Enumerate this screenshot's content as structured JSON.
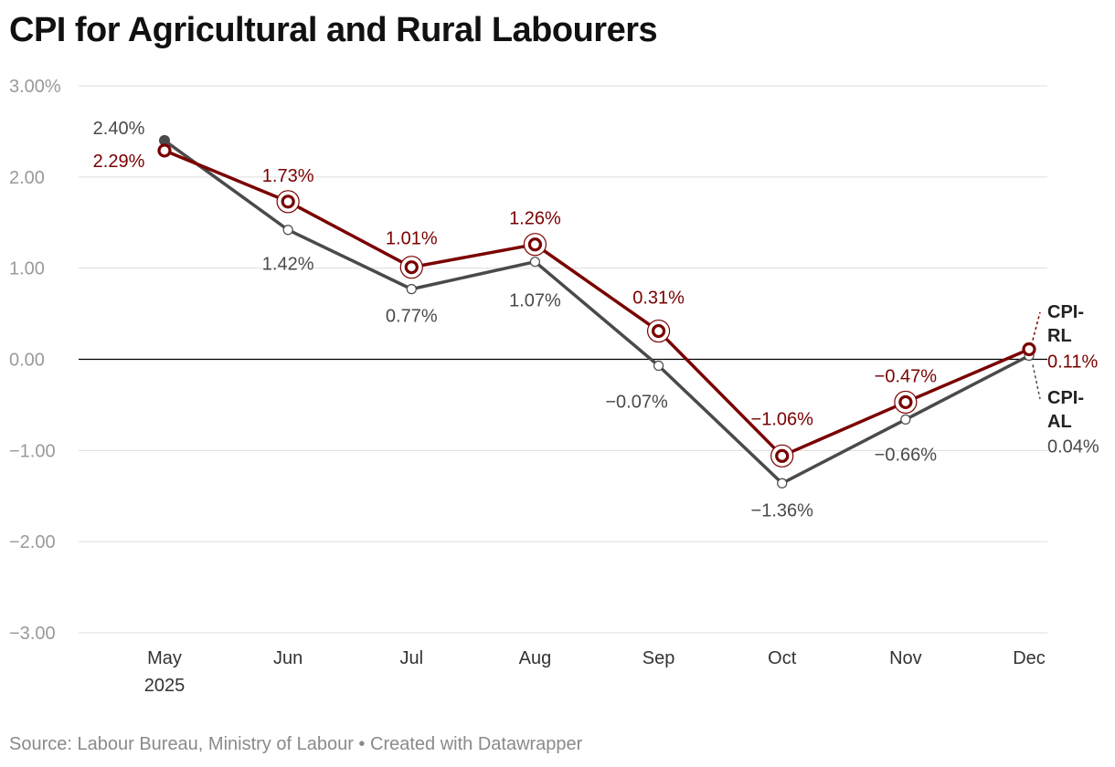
{
  "title": "CPI for Agricultural and Rural Labourers",
  "footer": {
    "source": "Source: Labour Bureau, Ministry of Labour",
    "separator": " • ",
    "credit": "Created with Datawrapper"
  },
  "colors": {
    "rl": "#7a0000",
    "al": "#4a4a4a",
    "grid": "#dddddd",
    "zero": "#000000",
    "tick": "#9a9a9a",
    "axis_label": "#333333"
  },
  "chart_data": {
    "type": "line",
    "title": "CPI for Agricultural and Rural Labourers",
    "categories": [
      "May",
      "Jun",
      "Jul",
      "Aug",
      "Sep",
      "Oct",
      "Nov",
      "Dec"
    ],
    "year_label": "2025",
    "y_ticks": [
      3,
      2,
      1,
      0,
      -1,
      -2,
      -3
    ],
    "y_tick_labels": [
      "3.00%",
      "2.00",
      "1.00",
      "0.00",
      "−1.00",
      "−2.00",
      "−3.00"
    ],
    "ylim": [
      -3,
      3
    ],
    "xlabel": "",
    "ylabel": "",
    "series": [
      {
        "key": "al",
        "name": "CPI-AL",
        "name_lines": [
          "CPI-",
          "AL"
        ],
        "values": [
          2.4,
          1.42,
          0.77,
          1.07,
          -0.07,
          -1.36,
          -0.66,
          0.04
        ],
        "labels": [
          "2.40%",
          "1.42%",
          "0.77%",
          "1.07%",
          "−0.07%",
          "−1.36%",
          "−0.66%",
          "0.04%"
        ]
      },
      {
        "key": "rl",
        "name": "CPI-RL",
        "name_lines": [
          "CPI-",
          "RL"
        ],
        "values": [
          2.29,
          1.73,
          1.01,
          1.26,
          0.31,
          -1.06,
          -0.47,
          0.11
        ],
        "labels": [
          "2.29%",
          "1.73%",
          "1.01%",
          "1.26%",
          "0.31%",
          "−1.06%",
          "−0.47%",
          "0.11%"
        ]
      }
    ]
  }
}
